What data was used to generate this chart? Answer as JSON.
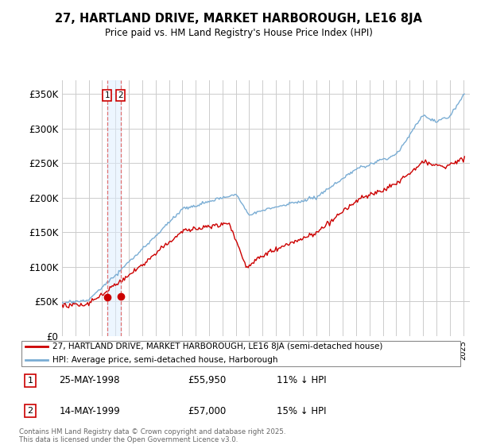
{
  "title": "27, HARTLAND DRIVE, MARKET HARBOROUGH, LE16 8JA",
  "subtitle": "Price paid vs. HM Land Registry's House Price Index (HPI)",
  "ylim": [
    0,
    370000
  ],
  "yticks": [
    0,
    50000,
    100000,
    150000,
    200000,
    250000,
    300000,
    350000
  ],
  "ytick_labels": [
    "£0",
    "£50K",
    "£100K",
    "£150K",
    "£200K",
    "£250K",
    "£300K",
    "£350K"
  ],
  "x_start_year": 1995,
  "x_end_year": 2025,
  "line_red_color": "#cc0000",
  "line_blue_color": "#7aadd4",
  "purchase1_year": 1998.38,
  "purchase1_price": 55950,
  "purchase2_year": 1999.37,
  "purchase2_price": 57000,
  "legend_line1": "27, HARTLAND DRIVE, MARKET HARBOROUGH, LE16 8JA (semi-detached house)",
  "legend_line2": "HPI: Average price, semi-detached house, Harborough",
  "transaction1_label": "1",
  "transaction1_date": "25-MAY-1998",
  "transaction1_price": "£55,950",
  "transaction1_note": "11% ↓ HPI",
  "transaction2_label": "2",
  "transaction2_date": "14-MAY-1999",
  "transaction2_price": "£57,000",
  "transaction2_note": "15% ↓ HPI",
  "footer": "Contains HM Land Registry data © Crown copyright and database right 2025.\nThis data is licensed under the Open Government Licence v3.0.",
  "background_color": "#ffffff",
  "grid_color": "#cccccc"
}
